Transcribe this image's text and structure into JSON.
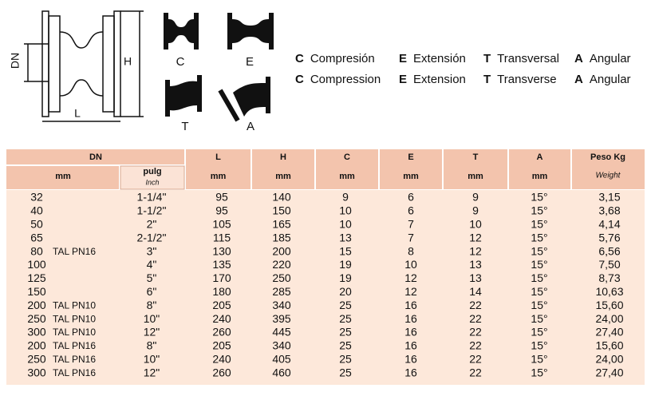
{
  "diagram": {
    "labels": {
      "dn": "DN",
      "l": "L",
      "h": "H",
      "c": "C",
      "e": "E",
      "t": "T",
      "a": "A"
    }
  },
  "legend": [
    [
      {
        "letter": "C",
        "word": "Compresión"
      },
      {
        "letter": "E",
        "word": "Extensión"
      },
      {
        "letter": "T",
        "word": "Transversal"
      },
      {
        "letter": "A",
        "word": "Angular"
      }
    ],
    [
      {
        "letter": "C",
        "word": "Compression"
      },
      {
        "letter": "E",
        "word": "Extension"
      },
      {
        "letter": "T",
        "word": "Transverse"
      },
      {
        "letter": "A",
        "word": "Angular"
      }
    ]
  ],
  "table": {
    "header": {
      "dn": "DN",
      "dn_unit": "mm",
      "pulg": "pulg",
      "inch": "Inch",
      "cols": [
        {
          "label": "L",
          "unit": "mm"
        },
        {
          "label": "H",
          "unit": "mm"
        },
        {
          "label": "C",
          "unit": "mm"
        },
        {
          "label": "E",
          "unit": "mm"
        },
        {
          "label": "T",
          "unit": "mm"
        },
        {
          "label": "A",
          "unit": "mm"
        }
      ],
      "peso": "Peso Kg",
      "weight": "Weight"
    },
    "rows": [
      {
        "dn": "32",
        "pulg": "1-1/4\"",
        "cells": [
          "95",
          "140",
          "9",
          "6",
          "9",
          "15°"
        ],
        "weight": "3,15"
      },
      {
        "dn": "40",
        "pulg": "1-1/2\"",
        "cells": [
          "95",
          "150",
          "10",
          "6",
          "9",
          "15°"
        ],
        "weight": "3,68"
      },
      {
        "dn": "50",
        "pulg": "2\"",
        "cells": [
          "105",
          "165",
          "10",
          "7",
          "10",
          "15°"
        ],
        "weight": "4,14"
      },
      {
        "dn": "65",
        "pulg": "2-1/2\"",
        "cells": [
          "115",
          "185",
          "13",
          "7",
          "12",
          "15°"
        ],
        "weight": "5,76"
      },
      {
        "dn": "80",
        "note": "TAL PN16",
        "pulg": "3\"",
        "cells": [
          "130",
          "200",
          "15",
          "8",
          "12",
          "15°"
        ],
        "weight": "6,56"
      },
      {
        "dn": "100",
        "pulg": "4\"",
        "cells": [
          "135",
          "220",
          "19",
          "10",
          "13",
          "15°"
        ],
        "weight": "7,50"
      },
      {
        "dn": "125",
        "pulg": "5\"",
        "cells": [
          "170",
          "250",
          "19",
          "12",
          "13",
          "15°"
        ],
        "weight": "8,73"
      },
      {
        "dn": "150",
        "pulg": "6\"",
        "cells": [
          "180",
          "285",
          "20",
          "12",
          "14",
          "15°"
        ],
        "weight": "10,63"
      },
      {
        "dn": "200",
        "note": "TAL PN10",
        "pulg": "8\"",
        "cells": [
          "205",
          "340",
          "25",
          "16",
          "22",
          "15°"
        ],
        "weight": "15,60"
      },
      {
        "dn": "250",
        "note": "TAL PN10",
        "pulg": "10\"",
        "cells": [
          "240",
          "395",
          "25",
          "16",
          "22",
          "15°"
        ],
        "weight": "24,00"
      },
      {
        "dn": "300",
        "note": "TAL PN10",
        "pulg": "12\"",
        "cells": [
          "260",
          "445",
          "25",
          "16",
          "22",
          "15°"
        ],
        "weight": "27,40"
      },
      {
        "dn": "200",
        "note": "TAL PN16",
        "pulg": "8\"",
        "cells": [
          "205",
          "340",
          "25",
          "16",
          "22",
          "15°"
        ],
        "weight": "15,60"
      },
      {
        "dn": "250",
        "note": "TAL PN16",
        "pulg": "10\"",
        "cells": [
          "240",
          "405",
          "25",
          "16",
          "22",
          "15°"
        ],
        "weight": "24,00"
      },
      {
        "dn": "300",
        "note": "TAL PN16",
        "pulg": "12\"",
        "cells": [
          "260",
          "460",
          "25",
          "16",
          "22",
          "15°"
        ],
        "weight": "27,40"
      }
    ]
  }
}
